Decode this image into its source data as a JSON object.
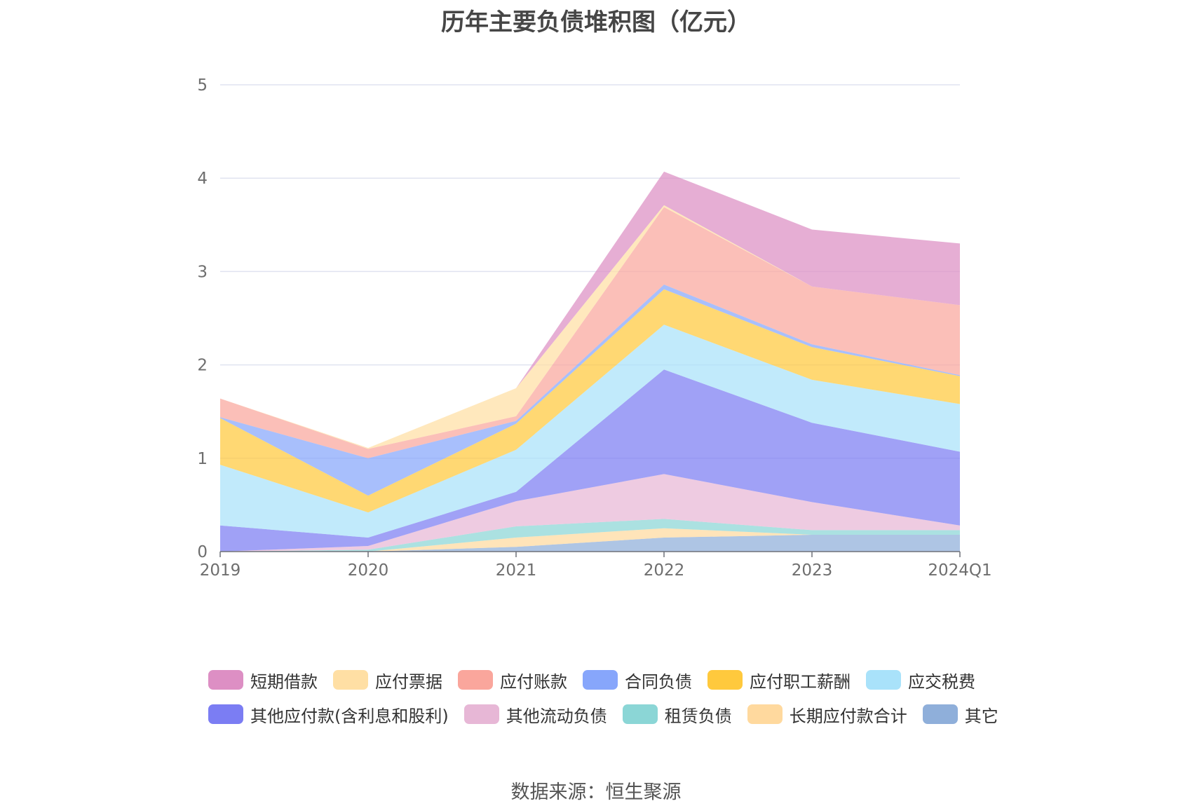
{
  "chart_data": {
    "type": "area",
    "stacked": true,
    "title": "历年主要负债堆积图（亿元）",
    "x": [
      "2019",
      "2020",
      "2021",
      "2022",
      "2023",
      "2024Q1"
    ],
    "yticks": [
      "0",
      "1",
      "2",
      "3",
      "4",
      "5"
    ],
    "ylim": [
      0,
      5
    ],
    "grid": true,
    "legend_position": "bottom",
    "series": [
      {
        "name": "其它",
        "color": "#8fafda",
        "values": [
          0.0,
          0.0,
          0.05,
          0.15,
          0.18,
          0.18
        ]
      },
      {
        "name": "长期应付款合计",
        "color": "#ffd99e",
        "values": [
          0.0,
          0.0,
          0.1,
          0.1,
          0.0,
          0.0
        ]
      },
      {
        "name": "租赁负债",
        "color": "#8bd6d6",
        "values": [
          0.0,
          0.02,
          0.12,
          0.1,
          0.05,
          0.05
        ]
      },
      {
        "name": "其他流动负债",
        "color": "#e7b7d6",
        "values": [
          0.0,
          0.04,
          0.27,
          0.48,
          0.3,
          0.05
        ]
      },
      {
        "name": "其他应付款(含利息和股利)",
        "color": "#7b7df3",
        "values": [
          0.28,
          0.09,
          0.1,
          1.12,
          0.85,
          0.79
        ]
      },
      {
        "name": "应交税费",
        "color": "#a9e2fa",
        "values": [
          0.65,
          0.27,
          0.45,
          0.48,
          0.46,
          0.51
        ]
      },
      {
        "name": "应付职工薪酬",
        "color": "#ffc93d",
        "values": [
          0.5,
          0.18,
          0.28,
          0.38,
          0.35,
          0.3
        ]
      },
      {
        "name": "合同负债",
        "color": "#87a6fb",
        "values": [
          0.01,
          0.4,
          0.03,
          0.05,
          0.03,
          0.01
        ]
      },
      {
        "name": "应付账款",
        "color": "#faa69c",
        "values": [
          0.2,
          0.1,
          0.05,
          0.83,
          0.62,
          0.75
        ]
      },
      {
        "name": "应付票据",
        "color": "#ffdfa4",
        "values": [
          0.0,
          0.01,
          0.3,
          0.02,
          0.0,
          0.0
        ]
      },
      {
        "name": "短期借款",
        "color": "#dd8fc4",
        "values": [
          0.0,
          0.0,
          0.0,
          0.36,
          0.61,
          0.66
        ]
      }
    ],
    "legend_rows": [
      [
        "短期借款",
        "应付票据",
        "应付账款",
        "合同负债",
        "应付职工薪酬",
        "应交税费"
      ],
      [
        "其他应付款(含利息和股利)",
        "其他流动负债",
        "租赁负债",
        "长期应付款合计",
        "其它"
      ]
    ]
  },
  "source": "数据来源：恒生聚源"
}
